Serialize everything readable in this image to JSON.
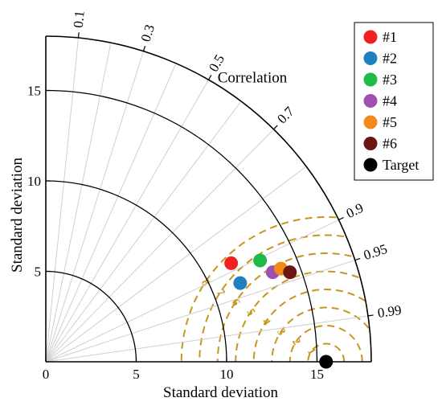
{
  "chart_data": {
    "type": "scatter",
    "subtype": "taylor-diagram",
    "title": "",
    "xlabel": "Standard deviation",
    "ylabel": "Standard deviation",
    "arc_label": "Correlation",
    "xlim": [
      0,
      18
    ],
    "ylim": [
      0,
      18
    ],
    "std_ticks": [
      0,
      5,
      10,
      15
    ],
    "std_tick_labels_x": [
      "0",
      "5",
      "10",
      "15"
    ],
    "std_tick_labels_y": [
      "5",
      "10",
      "15"
    ],
    "correlation_ticks": [
      {
        "value": 0.1,
        "label": "0.1"
      },
      {
        "value": 0.3,
        "label": "0.3"
      },
      {
        "value": 0.5,
        "label": "0.5"
      },
      {
        "value": 0.7,
        "label": "0.7"
      },
      {
        "value": 0.9,
        "label": "0.9"
      },
      {
        "value": 0.95,
        "label": "0.95"
      },
      {
        "value": 0.99,
        "label": "0.99"
      }
    ],
    "correlation_lines": [
      0.1,
      0.2,
      0.3,
      0.4,
      0.5,
      0.6,
      0.7,
      0.8,
      0.9,
      0.95,
      0.99
    ],
    "rms_contours": [
      {
        "value": 1,
        "label": "1"
      },
      {
        "value": 2,
        "label": "2"
      },
      {
        "value": 3,
        "label": "3"
      },
      {
        "value": 4,
        "label": "4"
      },
      {
        "value": 5,
        "label": "5"
      },
      {
        "value": 6,
        "label": "6"
      },
      {
        "value": 7,
        "label": "7"
      },
      {
        "value": 8,
        "label": "8"
      }
    ],
    "series": [
      {
        "name": "#1",
        "color": "#f02020",
        "x": 10.25,
        "y": 5.45
      },
      {
        "name": "#2",
        "color": "#1f7fc0",
        "x": 10.75,
        "y": 4.35
      },
      {
        "name": "#3",
        "color": "#1fbb48",
        "x": 11.85,
        "y": 5.6
      },
      {
        "name": "#4",
        "color": "#a050b0",
        "x": 12.55,
        "y": 4.95
      },
      {
        "name": "#5",
        "color": "#f08a1a",
        "x": 13.0,
        "y": 5.15
      },
      {
        "name": "#6",
        "color": "#6b1515",
        "x": 13.5,
        "y": 4.95
      },
      {
        "name": "Target",
        "color": "#000000",
        "x": 15.5,
        "y": 0
      }
    ],
    "grid": true,
    "legend_position": "top-right"
  }
}
